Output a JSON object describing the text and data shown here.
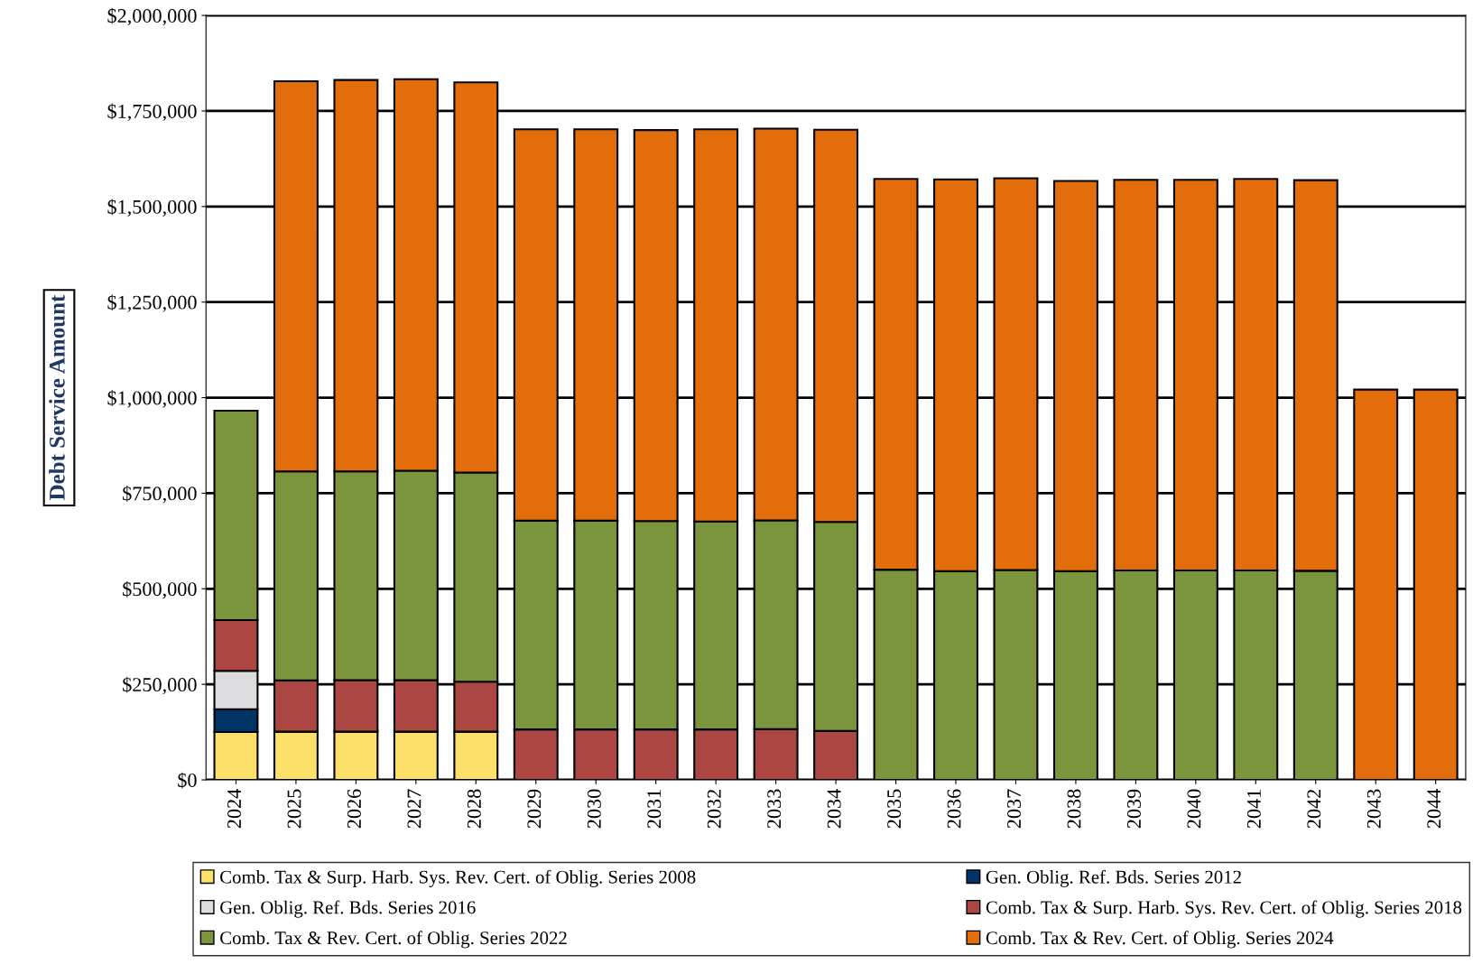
{
  "chart_data": {
    "type": "bar",
    "stacked": true,
    "ylabel": "Debt Service Amount",
    "categories": [
      "2024",
      "2025",
      "2026",
      "2027",
      "2028",
      "2029",
      "2030",
      "2031",
      "2032",
      "2033",
      "2034",
      "2035",
      "2036",
      "2037",
      "2038",
      "2039",
      "2040",
      "2041",
      "2042",
      "2043",
      "2044"
    ],
    "ylim": [
      0,
      2000000
    ],
    "yticks": [
      {
        "value": 0,
        "label": "$0"
      },
      {
        "value": 250000,
        "label": "$250,000"
      },
      {
        "value": 500000,
        "label": "$500,000"
      },
      {
        "value": 750000,
        "label": "$750,000"
      },
      {
        "value": 1000000,
        "label": "$1,000,000"
      },
      {
        "value": 1250000,
        "label": "$1,250,000"
      },
      {
        "value": 1500000,
        "label": "$1,500,000"
      },
      {
        "value": 1750000,
        "label": "$1,750,000"
      },
      {
        "value": 2000000,
        "label": "$2,000,000"
      }
    ],
    "grid": "y",
    "legend": "bottom",
    "series": [
      {
        "name": "Comb. Tax & Surp. Harb. Sys. Rev. Cert. of Oblig. Series 2008",
        "color": "#fde06a",
        "values": [
          125000,
          126000,
          126000,
          126000,
          126000,
          null,
          null,
          null,
          null,
          null,
          null,
          null,
          null,
          null,
          null,
          null,
          null,
          null,
          null,
          null,
          null
        ]
      },
      {
        "name": "Gen. Oblig. Ref. Bds. Series 2012",
        "color": "#003366",
        "values": [
          60000,
          null,
          null,
          null,
          null,
          null,
          null,
          null,
          null,
          null,
          null,
          null,
          null,
          null,
          null,
          null,
          null,
          null,
          null,
          null,
          null
        ]
      },
      {
        "name": "Gen. Oblig. Ref. Bds. Series 2016",
        "color": "#dcdcdf",
        "values": [
          100000,
          null,
          null,
          null,
          null,
          null,
          null,
          null,
          null,
          null,
          null,
          null,
          null,
          null,
          null,
          null,
          null,
          null,
          null,
          null,
          null
        ]
      },
      {
        "name": "Comb. Tax & Surp. Harb. Sys. Rev. Cert. of Oblig. Series 2018",
        "color": "#ac4642",
        "values": [
          133000,
          134000,
          135000,
          135000,
          131000,
          132000,
          132000,
          132000,
          132000,
          133000,
          128000,
          null,
          null,
          null,
          null,
          null,
          null,
          null,
          null,
          null,
          null
        ]
      },
      {
        "name": "Comb. Tax & Rev. Cert. of Oblig. Series 2022",
        "color": "#7a953b",
        "values": [
          548000,
          547000,
          546000,
          548000,
          547000,
          546000,
          546000,
          545000,
          544000,
          546000,
          547000,
          550000,
          546000,
          549000,
          546000,
          548000,
          548000,
          548000,
          547000,
          null,
          null
        ]
      },
      {
        "name": "Comb. Tax & Rev. Cert. of Oblig. Series 2024",
        "color": "#e36c0b",
        "values": [
          null,
          1021000,
          1024000,
          1024000,
          1021000,
          1024000,
          1024000,
          1023000,
          1026000,
          1025000,
          1026000,
          1022000,
          1025000,
          1025000,
          1021000,
          1022000,
          1022000,
          1024000,
          1022000,
          1021000,
          1021000
        ]
      }
    ]
  }
}
